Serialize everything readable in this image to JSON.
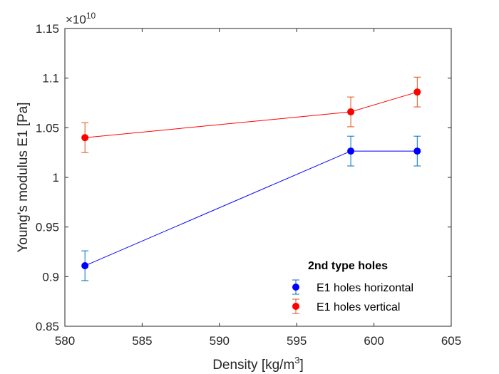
{
  "chart_data": {
    "type": "line",
    "title": "",
    "xlabel_prefix": "Density [kg/m",
    "xlabel_sup": "3",
    "xlabel_suffix": "]",
    "ylabel": "Young's modulus E1 [Pa]",
    "y_exponent_prefix": "×10",
    "y_exponent_sup": "10",
    "xlim": [
      580,
      605
    ],
    "ylim": [
      0.85,
      1.15
    ],
    "x_ticks": [
      580,
      585,
      590,
      595,
      600,
      605
    ],
    "x_tick_labels": [
      "580",
      "585",
      "590",
      "595",
      "600",
      "605"
    ],
    "y_ticks": [
      0.85,
      0.9,
      0.95,
      1.0,
      1.05,
      1.1,
      1.15
    ],
    "y_tick_labels": [
      "0.85",
      "0.9",
      "0.95",
      "1",
      "1.05",
      "1.1",
      "1.15"
    ],
    "grid": false,
    "legend_title": "2nd type holes",
    "legend_position": "bottom-right",
    "series": [
      {
        "name": "E1 holes horizontal",
        "color": "#0000ff",
        "errorbar_color": "#0072bd",
        "x": [
          581.3,
          598.5,
          602.8
        ],
        "y": [
          0.911,
          1.0265,
          1.0265
        ],
        "err": [
          0.015,
          0.015,
          0.015
        ]
      },
      {
        "name": "E1 holes vertical",
        "color": "#ff0000",
        "errorbar_color": "#d95319",
        "x": [
          581.3,
          598.5,
          602.8
        ],
        "y": [
          1.04,
          1.066,
          1.086
        ],
        "err": [
          0.015,
          0.015,
          0.015
        ]
      }
    ]
  }
}
